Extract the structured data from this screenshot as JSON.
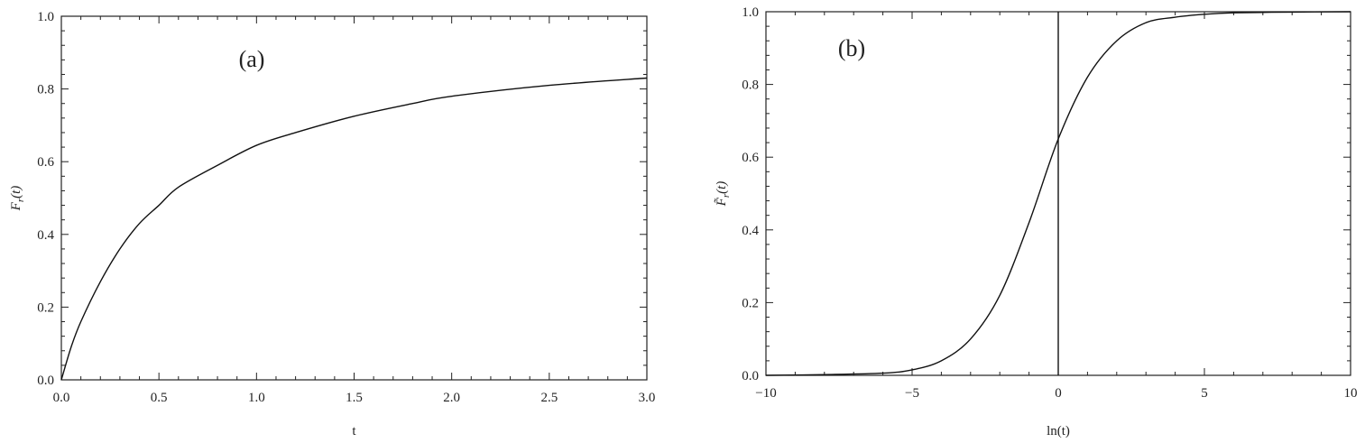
{
  "chart_data": [
    {
      "type": "line",
      "panel_label": "(a)",
      "xlabel": "t",
      "ylabel": "F_r(t)",
      "ylabel_main": "F",
      "ylabel_sub": "r",
      "ylabel_arg": "(t)",
      "xlim": [
        0,
        3
      ],
      "ylim": [
        0,
        1
      ],
      "x_ticks": [
        "0.0",
        "0.5",
        "1.0",
        "1.5",
        "2.0",
        "2.5",
        "3.0"
      ],
      "y_ticks": [
        "0.0",
        "0.2",
        "0.4",
        "0.6",
        "0.8",
        "1.0"
      ],
      "series": [
        {
          "x": [
            0,
            0.05,
            0.1,
            0.2,
            0.3,
            0.4,
            0.5,
            0.6,
            0.8,
            1.0,
            1.2,
            1.5,
            1.8,
            2.0,
            2.5,
            3.0
          ],
          "y": [
            0,
            0.09,
            0.16,
            0.27,
            0.36,
            0.43,
            0.48,
            0.53,
            0.59,
            0.645,
            0.68,
            0.725,
            0.76,
            0.78,
            0.81,
            0.83
          ]
        }
      ]
    },
    {
      "type": "line",
      "panel_label": "(b)",
      "xlabel": "ln(t)",
      "ylabel": "F̃_r(t)",
      "ylabel_main": "F̃",
      "ylabel_sub": "r",
      "ylabel_arg": "(t)",
      "xlim": [
        -10,
        10
      ],
      "ylim": [
        0,
        1
      ],
      "x_ticks": [
        "−10",
        "−5",
        "0",
        "5",
        "10"
      ],
      "y_ticks": [
        "0.0",
        "0.2",
        "0.4",
        "0.6",
        "0.8",
        "1.0"
      ],
      "vertical_line_x": 0,
      "series": [
        {
          "x": [
            -10,
            -8,
            -6,
            -5,
            -4,
            -3,
            -2,
            -1,
            0,
            1,
            2,
            3,
            4,
            5,
            6,
            8,
            10
          ],
          "y": [
            0,
            0.002,
            0.006,
            0.015,
            0.04,
            0.1,
            0.22,
            0.42,
            0.65,
            0.82,
            0.92,
            0.97,
            0.985,
            0.993,
            0.997,
            0.999,
            1.0
          ]
        }
      ]
    }
  ]
}
